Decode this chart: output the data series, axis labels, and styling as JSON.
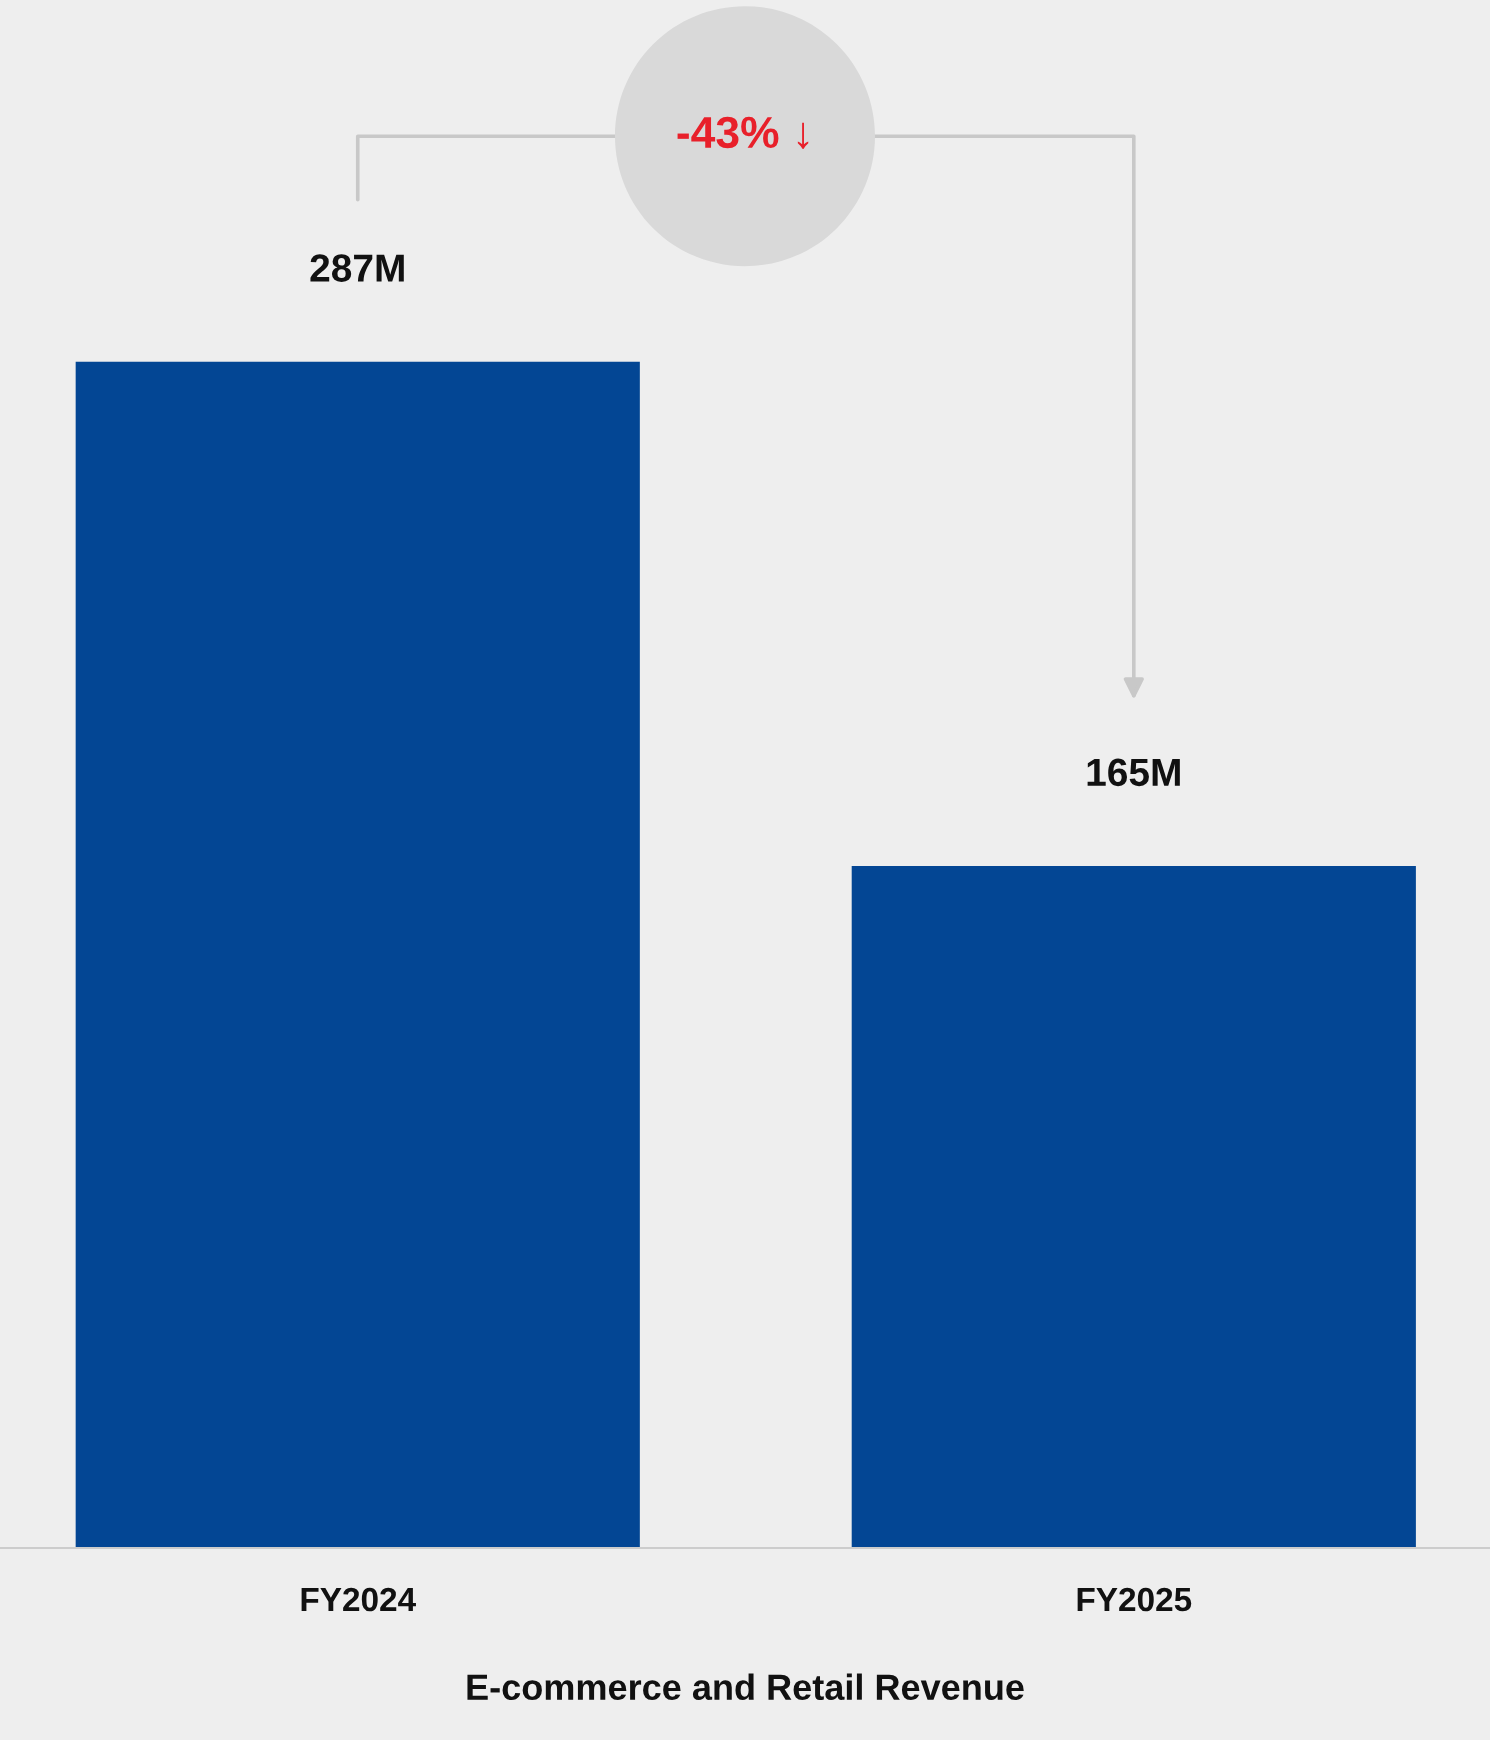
{
  "chart_data": {
    "type": "bar",
    "xlabel": "E-commerce and Retail Revenue",
    "categories": [
      "FY2024",
      "FY2025"
    ],
    "values": [
      287,
      165
    ],
    "value_labels": [
      "287M",
      "165M"
    ],
    "color": "#034694",
    "annotations": [
      "-43% ↓"
    ],
    "grid": false,
    "legend": false
  }
}
